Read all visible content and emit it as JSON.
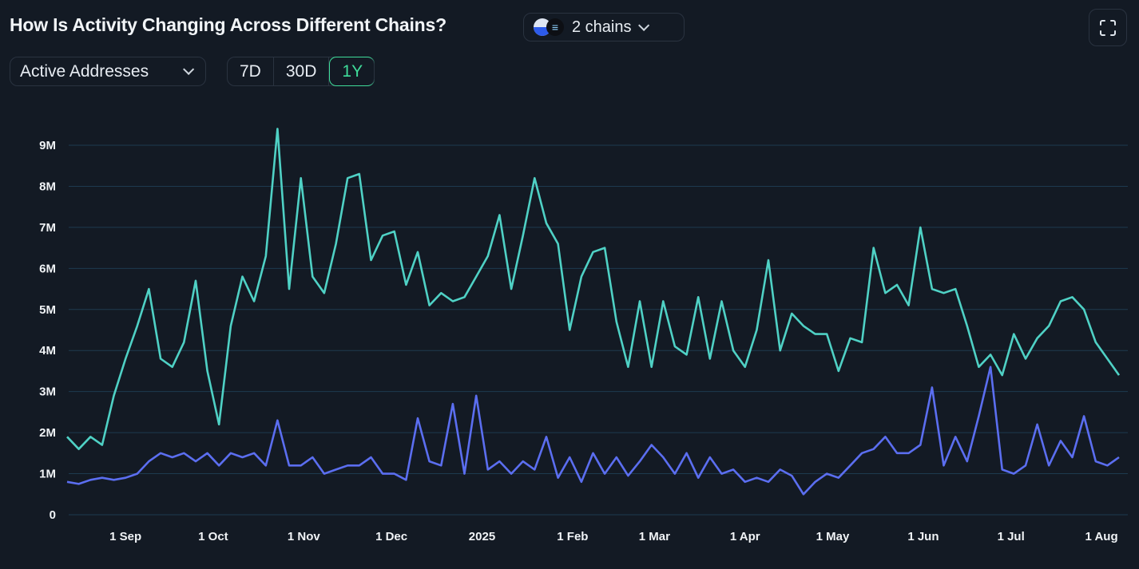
{
  "header": {
    "title": "How Is Activity Changing Across Different Chains?",
    "chain_selector": {
      "label": "2 chains",
      "icons": [
        "base-chain-icon",
        "solana-chain-icon"
      ]
    },
    "fullscreen_icon": "expand-icon"
  },
  "controls": {
    "metric": "Active Addresses",
    "ranges": [
      {
        "label": "7D",
        "active": false
      },
      {
        "label": "30D",
        "active": false
      },
      {
        "label": "1Y",
        "active": true
      }
    ],
    "active_color": "#3fdc9a"
  },
  "chart_data": {
    "type": "line",
    "title": "",
    "xlabel": "",
    "ylabel": "",
    "xlim": [
      "2024-08-12",
      "2025-08-10"
    ],
    "ylim": [
      0,
      9500000
    ],
    "grid": true,
    "y_ticks": [
      {
        "value": 0,
        "label": "0"
      },
      {
        "value": 1000000,
        "label": "1M"
      },
      {
        "value": 2000000,
        "label": "2M"
      },
      {
        "value": 3000000,
        "label": "3M"
      },
      {
        "value": 4000000,
        "label": "4M"
      },
      {
        "value": 5000000,
        "label": "5M"
      },
      {
        "value": 6000000,
        "label": "6M"
      },
      {
        "value": 7000000,
        "label": "7M"
      },
      {
        "value": 8000000,
        "label": "8M"
      },
      {
        "value": 9000000,
        "label": "9M"
      }
    ],
    "x_ticks": [
      {
        "date": "2024-09-01",
        "label": "1 Sep"
      },
      {
        "date": "2024-10-01",
        "label": "1 Oct"
      },
      {
        "date": "2024-11-01",
        "label": "1 Nov"
      },
      {
        "date": "2024-12-01",
        "label": "1 Dec"
      },
      {
        "date": "2025-01-01",
        "label": "2025"
      },
      {
        "date": "2025-02-01",
        "label": "1 Feb"
      },
      {
        "date": "2025-03-01",
        "label": "1 Mar"
      },
      {
        "date": "2025-04-01",
        "label": "1 Apr"
      },
      {
        "date": "2025-05-01",
        "label": "1 May"
      },
      {
        "date": "2025-06-01",
        "label": "1 Jun"
      },
      {
        "date": "2025-07-01",
        "label": "1 Jul"
      },
      {
        "date": "2025-08-01",
        "label": "1 Aug"
      }
    ],
    "x": [
      "2024-08-12",
      "2024-08-16",
      "2024-08-20",
      "2024-08-24",
      "2024-08-28",
      "2024-09-01",
      "2024-09-05",
      "2024-09-09",
      "2024-09-13",
      "2024-09-17",
      "2024-09-21",
      "2024-09-25",
      "2024-09-29",
      "2024-10-03",
      "2024-10-07",
      "2024-10-11",
      "2024-10-15",
      "2024-10-19",
      "2024-10-23",
      "2024-10-27",
      "2024-10-31",
      "2024-11-04",
      "2024-11-08",
      "2024-11-12",
      "2024-11-16",
      "2024-11-20",
      "2024-11-24",
      "2024-11-28",
      "2024-12-02",
      "2024-12-06",
      "2024-12-10",
      "2024-12-14",
      "2024-12-18",
      "2024-12-22",
      "2024-12-26",
      "2024-12-30",
      "2025-01-03",
      "2025-01-07",
      "2025-01-11",
      "2025-01-15",
      "2025-01-19",
      "2025-01-23",
      "2025-01-27",
      "2025-01-31",
      "2025-02-04",
      "2025-02-08",
      "2025-02-12",
      "2025-02-16",
      "2025-02-20",
      "2025-02-24",
      "2025-02-28",
      "2025-03-04",
      "2025-03-08",
      "2025-03-12",
      "2025-03-16",
      "2025-03-20",
      "2025-03-24",
      "2025-03-28",
      "2025-04-01",
      "2025-04-05",
      "2025-04-09",
      "2025-04-13",
      "2025-04-17",
      "2025-04-21",
      "2025-04-25",
      "2025-04-29",
      "2025-05-03",
      "2025-05-07",
      "2025-05-11",
      "2025-05-15",
      "2025-05-19",
      "2025-05-23",
      "2025-05-27",
      "2025-05-31",
      "2025-06-04",
      "2025-06-08",
      "2025-06-12",
      "2025-06-16",
      "2025-06-20",
      "2025-06-24",
      "2025-06-28",
      "2025-07-02",
      "2025-07-06",
      "2025-07-10",
      "2025-07-14",
      "2025-07-18",
      "2025-07-22",
      "2025-07-26",
      "2025-07-30",
      "2025-08-03",
      "2025-08-07"
    ],
    "series": [
      {
        "color": "#4fd1c5",
        "values": [
          1900000,
          1600000,
          1900000,
          1700000,
          2900000,
          3800000,
          4600000,
          5500000,
          3800000,
          3600000,
          4200000,
          5700000,
          3500000,
          2200000,
          4600000,
          5800000,
          5200000,
          6300000,
          9400000,
          5500000,
          8200000,
          5800000,
          5400000,
          6600000,
          8200000,
          8300000,
          6200000,
          6800000,
          6900000,
          5600000,
          6400000,
          5100000,
          5400000,
          5200000,
          5300000,
          5800000,
          6300000,
          7300000,
          5500000,
          6800000,
          8200000,
          7100000,
          6600000,
          4500000,
          5800000,
          6400000,
          6500000,
          4700000,
          3600000,
          5200000,
          3600000,
          5200000,
          4100000,
          3900000,
          5300000,
          3800000,
          5200000,
          4000000,
          3600000,
          4500000,
          6200000,
          4000000,
          4900000,
          4600000,
          4400000,
          4400000,
          3500000,
          4300000,
          4200000,
          6500000,
          5400000,
          5600000,
          5100000,
          7000000,
          5500000,
          5400000,
          5500000,
          4600000,
          3600000,
          3900000,
          3400000,
          4400000,
          3800000,
          4300000,
          4600000,
          5200000,
          5300000,
          5000000,
          4200000,
          3800000,
          3400000
        ]
      },
      {
        "color": "#5b6ef0",
        "values": [
          800000,
          750000,
          850000,
          900000,
          850000,
          900000,
          1000000,
          1300000,
          1500000,
          1400000,
          1500000,
          1300000,
          1500000,
          1200000,
          1500000,
          1400000,
          1500000,
          1200000,
          2300000,
          1200000,
          1200000,
          1400000,
          1000000,
          1100000,
          1200000,
          1200000,
          1400000,
          1000000,
          1000000,
          850000,
          2350000,
          1300000,
          1200000,
          2700000,
          1000000,
          2900000,
          1100000,
          1300000,
          1000000,
          1300000,
          1100000,
          1900000,
          900000,
          1400000,
          800000,
          1500000,
          1000000,
          1400000,
          950000,
          1300000,
          1700000,
          1400000,
          1000000,
          1500000,
          900000,
          1400000,
          1000000,
          1100000,
          800000,
          900000,
          800000,
          1100000,
          950000,
          500000,
          800000,
          1000000,
          900000,
          1200000,
          1500000,
          1600000,
          1900000,
          1500000,
          1500000,
          1700000,
          3100000,
          1200000,
          1900000,
          1300000,
          2400000,
          3600000,
          1100000,
          1000000,
          1200000,
          2200000,
          1200000,
          1800000,
          1400000,
          2400000,
          1300000,
          1200000,
          1400000
        ]
      }
    ]
  }
}
